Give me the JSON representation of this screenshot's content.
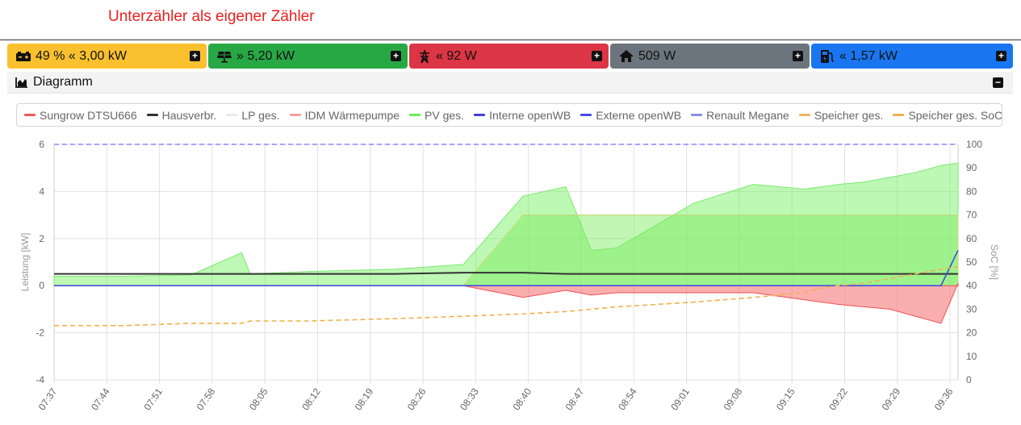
{
  "annotation": "Unterzähler als eigener Zähler",
  "tiles": {
    "battery": {
      "text": "49 % « 3,00 kW",
      "icon": "battery-icon",
      "color": "#fbc02d"
    },
    "pv": {
      "text": "» 5,20 kW",
      "icon": "solar-panel-icon",
      "color": "#28a745"
    },
    "grid": {
      "text": "« 92 W",
      "icon": "power-tower-icon",
      "color": "#dc3545"
    },
    "house": {
      "text": "509 W",
      "icon": "house-icon",
      "color": "#6c757d"
    },
    "chargepoint": {
      "text": "« 1,57 kW",
      "icon": "ev-charger-icon",
      "color": "#1976f0"
    }
  },
  "diagram": {
    "title": "Diagramm"
  },
  "chart_data": {
    "type": "line",
    "legend": [
      {
        "name": "Sungrow DTSU666",
        "color": "#f05a5a"
      },
      {
        "name": "Hausverbr.",
        "color": "#333333"
      },
      {
        "name": "LP ges.",
        "color": "#e8e8e8"
      },
      {
        "name": "IDM Wärmepumpe",
        "color": "#f4a0a0"
      },
      {
        "name": "PV ges.",
        "color": "#66ee55"
      },
      {
        "name": "Interne openWB",
        "color": "#4040e0"
      },
      {
        "name": "Externe openWB",
        "color": "#4848e8"
      },
      {
        "name": "Renault Megane",
        "color": "#8a8af0"
      },
      {
        "name": "Speicher ges.",
        "color": "#f5b062"
      },
      {
        "name": "Speicher ges. SoC",
        "color": "#f0b050"
      }
    ],
    "ylabel_left": "Leistung [kW]",
    "ylabel_right": "SoC [%]",
    "ylim_left": [
      -4,
      6
    ],
    "ylim_right": [
      0,
      100
    ],
    "yticks_left": [
      "6",
      "4",
      "2",
      "0",
      "-2",
      "-4"
    ],
    "yticks_right": [
      "100",
      "90",
      "80",
      "70",
      "60",
      "50",
      "40",
      "30",
      "20",
      "10",
      "0"
    ],
    "xticks": [
      "07:37",
      "07:44",
      "07:51",
      "07:58",
      "08:05",
      "08:12",
      "08:19",
      "08:26",
      "08:33",
      "08:40",
      "08:47",
      "08:54",
      "09:01",
      "09:08",
      "09:15",
      "09:22",
      "09:29",
      "09:36"
    ],
    "x_minutes": [
      0,
      8,
      16,
      22,
      23,
      30,
      40,
      48,
      55,
      60,
      63,
      66,
      75,
      82,
      88,
      90,
      92,
      95,
      98,
      101,
      104,
      106
    ],
    "series": [
      {
        "name": "PV ges.",
        "values": [
          0.4,
          0.4,
          0.45,
          1.4,
          0.5,
          0.6,
          0.7,
          0.9,
          3.8,
          4.2,
          1.5,
          1.6,
          3.5,
          4.3,
          4.1,
          4.2,
          4.3,
          4.4,
          4.6,
          4.8,
          5.1,
          5.2
        ]
      },
      {
        "name": "Hausverbr.",
        "values": [
          0.5,
          0.5,
          0.5,
          0.5,
          0.5,
          0.5,
          0.5,
          0.55,
          0.55,
          0.5,
          0.5,
          0.5,
          0.5,
          0.5,
          0.5,
          0.5,
          0.5,
          0.5,
          0.5,
          0.5,
          0.5,
          0.5
        ]
      },
      {
        "name": "Sungrow DTSU666",
        "values": [
          0,
          0,
          0,
          0,
          0,
          0,
          0,
          0,
          -0.5,
          -0.2,
          -0.4,
          -0.3,
          -0.3,
          -0.3,
          -0.6,
          -0.7,
          -0.8,
          -0.9,
          -1.0,
          -1.3,
          -1.6,
          0.1
        ]
      },
      {
        "name": "Speicher ges.",
        "values": [
          0,
          0,
          0,
          0,
          0,
          0,
          0,
          0,
          3.0,
          3.0,
          3.0,
          3.0,
          3.0,
          3.0,
          3.0,
          3.0,
          3.0,
          3.0,
          3.0,
          3.0,
          3.0,
          3.0
        ]
      },
      {
        "name": "Speicher ges. SoC",
        "values": [
          23,
          23,
          24,
          24,
          25,
          25,
          26,
          27,
          28,
          29,
          30,
          31,
          33,
          35,
          37,
          39,
          40,
          41,
          43,
          45,
          47,
          48
        ]
      },
      {
        "name": "Interne openWB",
        "values": [
          0,
          0,
          0,
          0,
          0,
          0,
          0,
          0,
          0,
          0,
          0,
          0,
          0,
          0,
          0,
          0,
          0,
          0,
          0,
          0,
          0,
          1.5
        ]
      },
      {
        "name": "Renault Megane",
        "values": [
          6,
          6,
          6,
          6,
          6,
          6,
          6,
          6,
          6,
          6,
          6,
          6,
          6,
          6,
          6,
          6,
          6,
          6,
          6,
          6,
          6,
          6
        ]
      }
    ]
  }
}
